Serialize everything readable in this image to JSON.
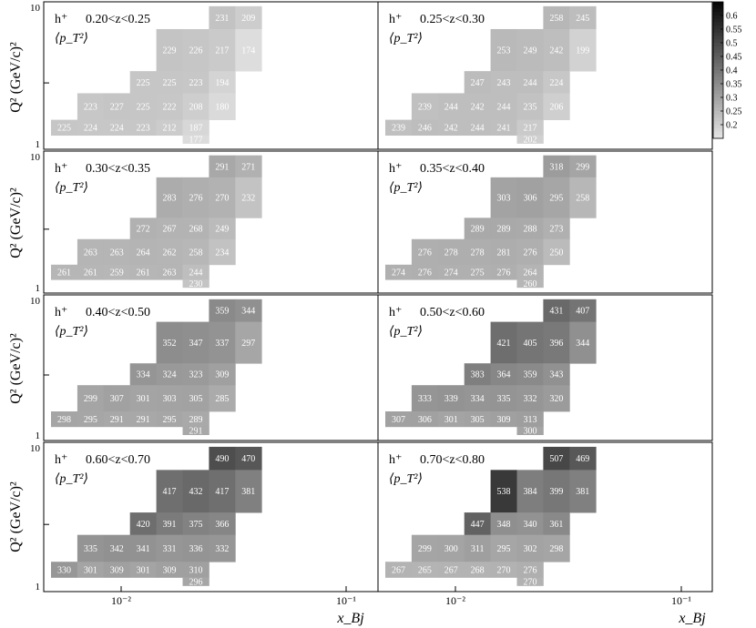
{
  "xlabel": "x_Bj",
  "ylabel": "Q² (GeV/c)²",
  "hadron_label": "h⁺",
  "observable_label": "⟨p_T²⟩",
  "x_ticks": [
    "10⁻²",
    "10⁻¹",
    "10⁻²",
    "10⁻¹"
  ],
  "y_ticks": {
    "top": "10",
    "bottom": "1"
  },
  "colorbar": {
    "ticks": [
      "0.6",
      "0.55",
      "0.5",
      "0.45",
      "0.4",
      "0.35",
      "0.3",
      "0.25",
      "0.2"
    ],
    "range": [
      0.15,
      0.65
    ]
  },
  "chart_data": {
    "type": "heatmap",
    "bins": {
      "x_edges": [
        0.003,
        0.005,
        0.008,
        0.013,
        0.02,
        0.032,
        0.05,
        0.08,
        0.13,
        0.21
      ],
      "q2_edges": [
        1.0,
        1.7,
        3.0,
        5.0,
        10.0
      ]
    },
    "panels": [
      {
        "z_range": "0.20<z<0.25",
        "cells": [
          {
            "row": 3,
            "col": 6,
            "value": 231
          },
          {
            "row": 3,
            "col": 7,
            "value": 209
          },
          {
            "row": 2,
            "col": 4,
            "value": 229
          },
          {
            "row": 2,
            "col": 5,
            "value": 226
          },
          {
            "row": 2,
            "col": 6,
            "value": 217
          },
          {
            "row": 2,
            "col": 7,
            "value": 174
          },
          {
            "row": 1,
            "col": 3,
            "value": 225
          },
          {
            "row": 1,
            "col": 4,
            "value": 225
          },
          {
            "row": 1,
            "col": 5,
            "value": 223
          },
          {
            "row": 1,
            "col": 6,
            "value": 194
          },
          {
            "row": 0,
            "col": 1,
            "value": 223
          },
          {
            "row": 0,
            "col": 2,
            "value": 227
          },
          {
            "row": 0,
            "col": 3,
            "value": 225
          },
          {
            "row": 0,
            "col": 4,
            "value": 222
          },
          {
            "row": 0,
            "col": 5,
            "value": 208
          },
          {
            "row": 0,
            "col": 6,
            "value": 180
          },
          {
            "row": -1,
            "col": 0,
            "value": 225
          },
          {
            "row": -1,
            "col": 1,
            "value": 224
          },
          {
            "row": -1,
            "col": 2,
            "value": 224
          },
          {
            "row": -1,
            "col": 3,
            "value": 223
          },
          {
            "row": -1,
            "col": 4,
            "value": 212
          },
          {
            "row": -1,
            "col": 5,
            "value": 187
          },
          {
            "row": -2,
            "col": 5,
            "value": 177
          }
        ]
      },
      {
        "z_range": "0.25<z<0.30",
        "cells": [
          {
            "row": 3,
            "col": 6,
            "value": 258
          },
          {
            "row": 3,
            "col": 7,
            "value": 245
          },
          {
            "row": 2,
            "col": 4,
            "value": 253
          },
          {
            "row": 2,
            "col": 5,
            "value": 249
          },
          {
            "row": 2,
            "col": 6,
            "value": 242
          },
          {
            "row": 2,
            "col": 7,
            "value": 199
          },
          {
            "row": 1,
            "col": 3,
            "value": 247
          },
          {
            "row": 1,
            "col": 4,
            "value": 243
          },
          {
            "row": 1,
            "col": 5,
            "value": 244
          },
          {
            "row": 1,
            "col": 6,
            "value": 224
          },
          {
            "row": 0,
            "col": 1,
            "value": 239
          },
          {
            "row": 0,
            "col": 2,
            "value": 244
          },
          {
            "row": 0,
            "col": 3,
            "value": 242
          },
          {
            "row": 0,
            "col": 4,
            "value": 244
          },
          {
            "row": 0,
            "col": 5,
            "value": 235
          },
          {
            "row": 0,
            "col": 6,
            "value": 206
          },
          {
            "row": -1,
            "col": 0,
            "value": 239
          },
          {
            "row": -1,
            "col": 1,
            "value": 246
          },
          {
            "row": -1,
            "col": 2,
            "value": 242
          },
          {
            "row": -1,
            "col": 3,
            "value": 244
          },
          {
            "row": -1,
            "col": 4,
            "value": 241
          },
          {
            "row": -1,
            "col": 5,
            "value": 217
          },
          {
            "row": -2,
            "col": 5,
            "value": 202
          }
        ]
      },
      {
        "z_range": "0.30<z<0.35",
        "cells": [
          {
            "row": 3,
            "col": 6,
            "value": 291
          },
          {
            "row": 3,
            "col": 7,
            "value": 271
          },
          {
            "row": 2,
            "col": 4,
            "value": 283
          },
          {
            "row": 2,
            "col": 5,
            "value": 276
          },
          {
            "row": 2,
            "col": 6,
            "value": 270
          },
          {
            "row": 2,
            "col": 7,
            "value": 232
          },
          {
            "row": 1,
            "col": 3,
            "value": 272
          },
          {
            "row": 1,
            "col": 4,
            "value": 267
          },
          {
            "row": 1,
            "col": 5,
            "value": 268
          },
          {
            "row": 1,
            "col": 6,
            "value": 249
          },
          {
            "row": 0,
            "col": 1,
            "value": 263
          },
          {
            "row": 0,
            "col": 2,
            "value": 263
          },
          {
            "row": 0,
            "col": 3,
            "value": 264
          },
          {
            "row": 0,
            "col": 4,
            "value": 262
          },
          {
            "row": 0,
            "col": 5,
            "value": 258
          },
          {
            "row": 0,
            "col": 6,
            "value": 234
          },
          {
            "row": -1,
            "col": 0,
            "value": 261
          },
          {
            "row": -1,
            "col": 1,
            "value": 261
          },
          {
            "row": -1,
            "col": 2,
            "value": 259
          },
          {
            "row": -1,
            "col": 3,
            "value": 261
          },
          {
            "row": -1,
            "col": 4,
            "value": 263
          },
          {
            "row": -1,
            "col": 5,
            "value": 244
          },
          {
            "row": -2,
            "col": 5,
            "value": 230
          }
        ]
      },
      {
        "z_range": "0.35<z<0.40",
        "cells": [
          {
            "row": 3,
            "col": 6,
            "value": 318
          },
          {
            "row": 3,
            "col": 7,
            "value": 299
          },
          {
            "row": 2,
            "col": 4,
            "value": 303
          },
          {
            "row": 2,
            "col": 5,
            "value": 306
          },
          {
            "row": 2,
            "col": 6,
            "value": 295
          },
          {
            "row": 2,
            "col": 7,
            "value": 258
          },
          {
            "row": 1,
            "col": 3,
            "value": 289
          },
          {
            "row": 1,
            "col": 4,
            "value": 289
          },
          {
            "row": 1,
            "col": 5,
            "value": 288
          },
          {
            "row": 1,
            "col": 6,
            "value": 273
          },
          {
            "row": 0,
            "col": 1,
            "value": 276
          },
          {
            "row": 0,
            "col": 2,
            "value": 278
          },
          {
            "row": 0,
            "col": 3,
            "value": 278
          },
          {
            "row": 0,
            "col": 4,
            "value": 281
          },
          {
            "row": 0,
            "col": 5,
            "value": 276
          },
          {
            "row": 0,
            "col": 6,
            "value": 250
          },
          {
            "row": -1,
            "col": 0,
            "value": 274
          },
          {
            "row": -1,
            "col": 1,
            "value": 276
          },
          {
            "row": -1,
            "col": 2,
            "value": 274
          },
          {
            "row": -1,
            "col": 3,
            "value": 275
          },
          {
            "row": -1,
            "col": 4,
            "value": 276
          },
          {
            "row": -1,
            "col": 5,
            "value": 264
          },
          {
            "row": -2,
            "col": 5,
            "value": 260
          }
        ]
      },
      {
        "z_range": "0.40<z<0.50",
        "cells": [
          {
            "row": 3,
            "col": 6,
            "value": 359
          },
          {
            "row": 3,
            "col": 7,
            "value": 344
          },
          {
            "row": 2,
            "col": 4,
            "value": 352
          },
          {
            "row": 2,
            "col": 5,
            "value": 347
          },
          {
            "row": 2,
            "col": 6,
            "value": 337
          },
          {
            "row": 2,
            "col": 7,
            "value": 297
          },
          {
            "row": 1,
            "col": 3,
            "value": 334
          },
          {
            "row": 1,
            "col": 4,
            "value": 324
          },
          {
            "row": 1,
            "col": 5,
            "value": 323
          },
          {
            "row": 1,
            "col": 6,
            "value": 309
          },
          {
            "row": 0,
            "col": 1,
            "value": 299
          },
          {
            "row": 0,
            "col": 2,
            "value": 307
          },
          {
            "row": 0,
            "col": 3,
            "value": 301
          },
          {
            "row": 0,
            "col": 4,
            "value": 303
          },
          {
            "row": 0,
            "col": 5,
            "value": 305
          },
          {
            "row": 0,
            "col": 6,
            "value": 285
          },
          {
            "row": -1,
            "col": 0,
            "value": 298
          },
          {
            "row": -1,
            "col": 1,
            "value": 295
          },
          {
            "row": -1,
            "col": 2,
            "value": 291
          },
          {
            "row": -1,
            "col": 3,
            "value": 291
          },
          {
            "row": -1,
            "col": 4,
            "value": 295
          },
          {
            "row": -1,
            "col": 5,
            "value": 289
          },
          {
            "row": -2,
            "col": 5,
            "value": 291
          }
        ]
      },
      {
        "z_range": "0.50<z<0.60",
        "cells": [
          {
            "row": 3,
            "col": 6,
            "value": 431
          },
          {
            "row": 3,
            "col": 7,
            "value": 407
          },
          {
            "row": 2,
            "col": 4,
            "value": 421
          },
          {
            "row": 2,
            "col": 5,
            "value": 405
          },
          {
            "row": 2,
            "col": 6,
            "value": 396
          },
          {
            "row": 2,
            "col": 7,
            "value": 344
          },
          {
            "row": 1,
            "col": 3,
            "value": 383
          },
          {
            "row": 1,
            "col": 4,
            "value": 364
          },
          {
            "row": 1,
            "col": 5,
            "value": 359
          },
          {
            "row": 1,
            "col": 6,
            "value": 343
          },
          {
            "row": 0,
            "col": 1,
            "value": 333
          },
          {
            "row": 0,
            "col": 2,
            "value": 339
          },
          {
            "row": 0,
            "col": 3,
            "value": 334
          },
          {
            "row": 0,
            "col": 4,
            "value": 335
          },
          {
            "row": 0,
            "col": 5,
            "value": 332
          },
          {
            "row": 0,
            "col": 6,
            "value": 320
          },
          {
            "row": -1,
            "col": 0,
            "value": 307
          },
          {
            "row": -1,
            "col": 1,
            "value": 306
          },
          {
            "row": -1,
            "col": 2,
            "value": 301
          },
          {
            "row": -1,
            "col": 3,
            "value": 305
          },
          {
            "row": -1,
            "col": 4,
            "value": 309
          },
          {
            "row": -1,
            "col": 5,
            "value": 313
          },
          {
            "row": -2,
            "col": 5,
            "value": 300
          }
        ]
      },
      {
        "z_range": "0.60<z<0.70",
        "cells": [
          {
            "row": 3,
            "col": 6,
            "value": 490
          },
          {
            "row": 3,
            "col": 7,
            "value": 470
          },
          {
            "row": 2,
            "col": 4,
            "value": 417
          },
          {
            "row": 2,
            "col": 5,
            "value": 432
          },
          {
            "row": 2,
            "col": 6,
            "value": 417
          },
          {
            "row": 2,
            "col": 7,
            "value": 381
          },
          {
            "row": 1,
            "col": 3,
            "value": 420
          },
          {
            "row": 1,
            "col": 4,
            "value": 391
          },
          {
            "row": 1,
            "col": 5,
            "value": 375
          },
          {
            "row": 1,
            "col": 6,
            "value": 366
          },
          {
            "row": 0,
            "col": 1,
            "value": 335
          },
          {
            "row": 0,
            "col": 2,
            "value": 342
          },
          {
            "row": 0,
            "col": 3,
            "value": 341
          },
          {
            "row": 0,
            "col": 4,
            "value": 331
          },
          {
            "row": 0,
            "col": 5,
            "value": 336
          },
          {
            "row": 0,
            "col": 6,
            "value": 332
          },
          {
            "row": -1,
            "col": 0,
            "value": 330
          },
          {
            "row": -1,
            "col": 1,
            "value": 301
          },
          {
            "row": -1,
            "col": 2,
            "value": 309
          },
          {
            "row": -1,
            "col": 3,
            "value": 301
          },
          {
            "row": -1,
            "col": 4,
            "value": 309
          },
          {
            "row": -1,
            "col": 5,
            "value": 310
          },
          {
            "row": -2,
            "col": 5,
            "value": 296
          }
        ]
      },
      {
        "z_range": "0.70<z<0.80",
        "cells": [
          {
            "row": 3,
            "col": 6,
            "value": 507
          },
          {
            "row": 3,
            "col": 7,
            "value": 469
          },
          {
            "row": 2,
            "col": 4,
            "value": 538
          },
          {
            "row": 2,
            "col": 5,
            "value": 384
          },
          {
            "row": 2,
            "col": 6,
            "value": 399
          },
          {
            "row": 2,
            "col": 7,
            "value": 381
          },
          {
            "row": 1,
            "col": 3,
            "value": 447
          },
          {
            "row": 1,
            "col": 4,
            "value": 348
          },
          {
            "row": 1,
            "col": 5,
            "value": 340
          },
          {
            "row": 1,
            "col": 6,
            "value": 361
          },
          {
            "row": 0,
            "col": 1,
            "value": 299
          },
          {
            "row": 0,
            "col": 2,
            "value": 300
          },
          {
            "row": 0,
            "col": 3,
            "value": 311
          },
          {
            "row": 0,
            "col": 4,
            "value": 295
          },
          {
            "row": 0,
            "col": 5,
            "value": 302
          },
          {
            "row": 0,
            "col": 6,
            "value": 298
          },
          {
            "row": -1,
            "col": 0,
            "value": 267
          },
          {
            "row": -1,
            "col": 1,
            "value": 265
          },
          {
            "row": -1,
            "col": 2,
            "value": 267
          },
          {
            "row": -1,
            "col": 3,
            "value": 268
          },
          {
            "row": -1,
            "col": 4,
            "value": 270
          },
          {
            "row": -1,
            "col": 5,
            "value": 276
          },
          {
            "row": -2,
            "col": 5,
            "value": 270
          }
        ]
      }
    ]
  }
}
